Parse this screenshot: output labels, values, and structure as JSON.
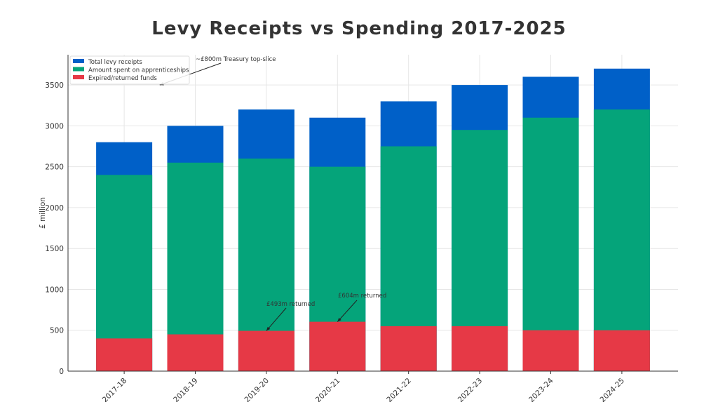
{
  "chart_data": {
    "type": "bar",
    "title": "Levy Receipts vs Spending 2017-2025",
    "xlabel": "",
    "ylabel": "£ million",
    "ylim": [
      0,
      3870
    ],
    "yticks": [
      0,
      500,
      1000,
      1500,
      2000,
      2500,
      3000,
      3500
    ],
    "grid": true,
    "legend_position": "top-left",
    "categories": [
      "2017-18",
      "2018-19",
      "2019-20",
      "2020-21",
      "2021-22",
      "2022-23",
      "2023-24",
      "2024-25"
    ],
    "series": [
      {
        "name": "Total levy receipts",
        "color": "#0060c8",
        "values": [
          2800,
          3000,
          3200,
          3100,
          3300,
          3500,
          3600,
          3700
        ]
      },
      {
        "name": "Amount spent on apprenticeships",
        "color": "#05a47a",
        "values": [
          2400,
          2550,
          2600,
          2500,
          2750,
          2950,
          3100,
          3200
        ]
      },
      {
        "name": "Expired/returned funds",
        "color": "#e63946",
        "values": [
          400,
          450,
          493,
          604,
          550,
          550,
          500,
          500
        ]
      }
    ],
    "annotations": [
      {
        "text": "~£800m Treasury top-slice",
        "x_index": 0.5,
        "y": 3500
      },
      {
        "text": "£493m returned",
        "x_index": 2,
        "y": 493
      },
      {
        "text": "£604m returned",
        "x_index": 3,
        "y": 604
      }
    ]
  }
}
